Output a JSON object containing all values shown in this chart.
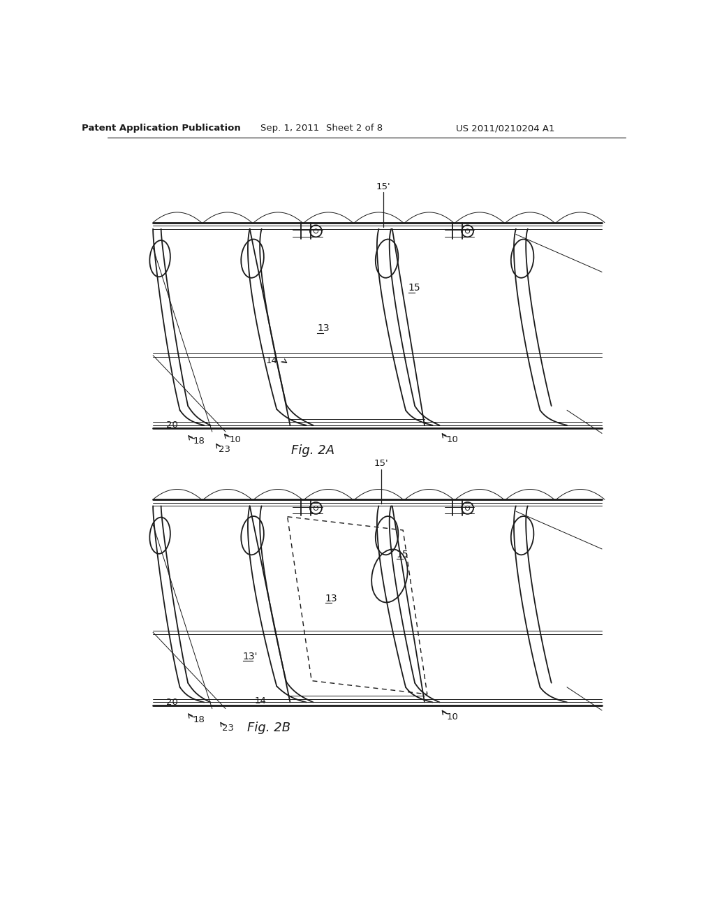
{
  "bg_color": "#ffffff",
  "line_color": "#1a1a1a",
  "header_text": "Patent Application Publication",
  "header_date": "Sep. 1, 2011",
  "header_sheet": "Sheet 2 of 8",
  "header_patent": "US 2011/0210204 A1",
  "fig2a_label": "Fig. 2A",
  "fig2b_label": "Fig. 2B"
}
